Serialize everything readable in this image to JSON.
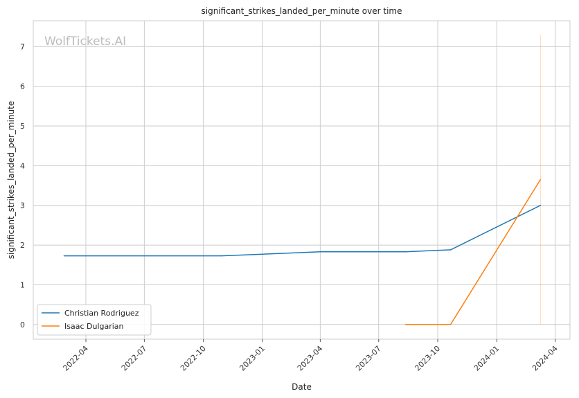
{
  "chart_data": {
    "type": "line",
    "title": "significant_strikes_landed_per_minute over time",
    "xlabel": "Date",
    "ylabel": "significant_strikes_landed_per_minute",
    "watermark": "WolfTickets.AI",
    "x_ticks": [
      "2022-04",
      "2022-07",
      "2022-10",
      "2023-01",
      "2023-04",
      "2023-07",
      "2023-10",
      "2024-01",
      "2024-04"
    ],
    "y_ticks": [
      0,
      1,
      2,
      3,
      4,
      5,
      6,
      7
    ],
    "xlim": [
      "2022-01-09",
      "2024-04-24"
    ],
    "ylim": [
      -0.37,
      7.65
    ],
    "grid": true,
    "legend_position": "bottom-left",
    "colors": {
      "Christian Rodriguez": "#1f77b4",
      "Isaac Dulgarian": "#ff7f0e"
    },
    "series": [
      {
        "name": "Christian Rodriguez",
        "points": [
          {
            "date": "2022-02-26",
            "value": 1.73
          },
          {
            "date": "2022-10-29",
            "value": 1.73
          },
          {
            "date": "2023-04-01",
            "value": 1.83
          },
          {
            "date": "2023-08-12",
            "value": 1.83
          },
          {
            "date": "2023-10-21",
            "value": 1.88
          },
          {
            "date": "2024-03-09",
            "value": 3.0
          }
        ]
      },
      {
        "name": "Isaac Dulgarian",
        "points": [
          {
            "date": "2023-08-12",
            "value": 0.0
          },
          {
            "date": "2023-10-21",
            "value": 0.0
          },
          {
            "date": "2024-03-09",
            "value": 3.65
          }
        ]
      }
    ],
    "annotations": [
      {
        "type": "vertical_line",
        "date": "2024-03-09",
        "from": 0,
        "to": 7.3,
        "color": "#ff7f0e"
      }
    ]
  }
}
